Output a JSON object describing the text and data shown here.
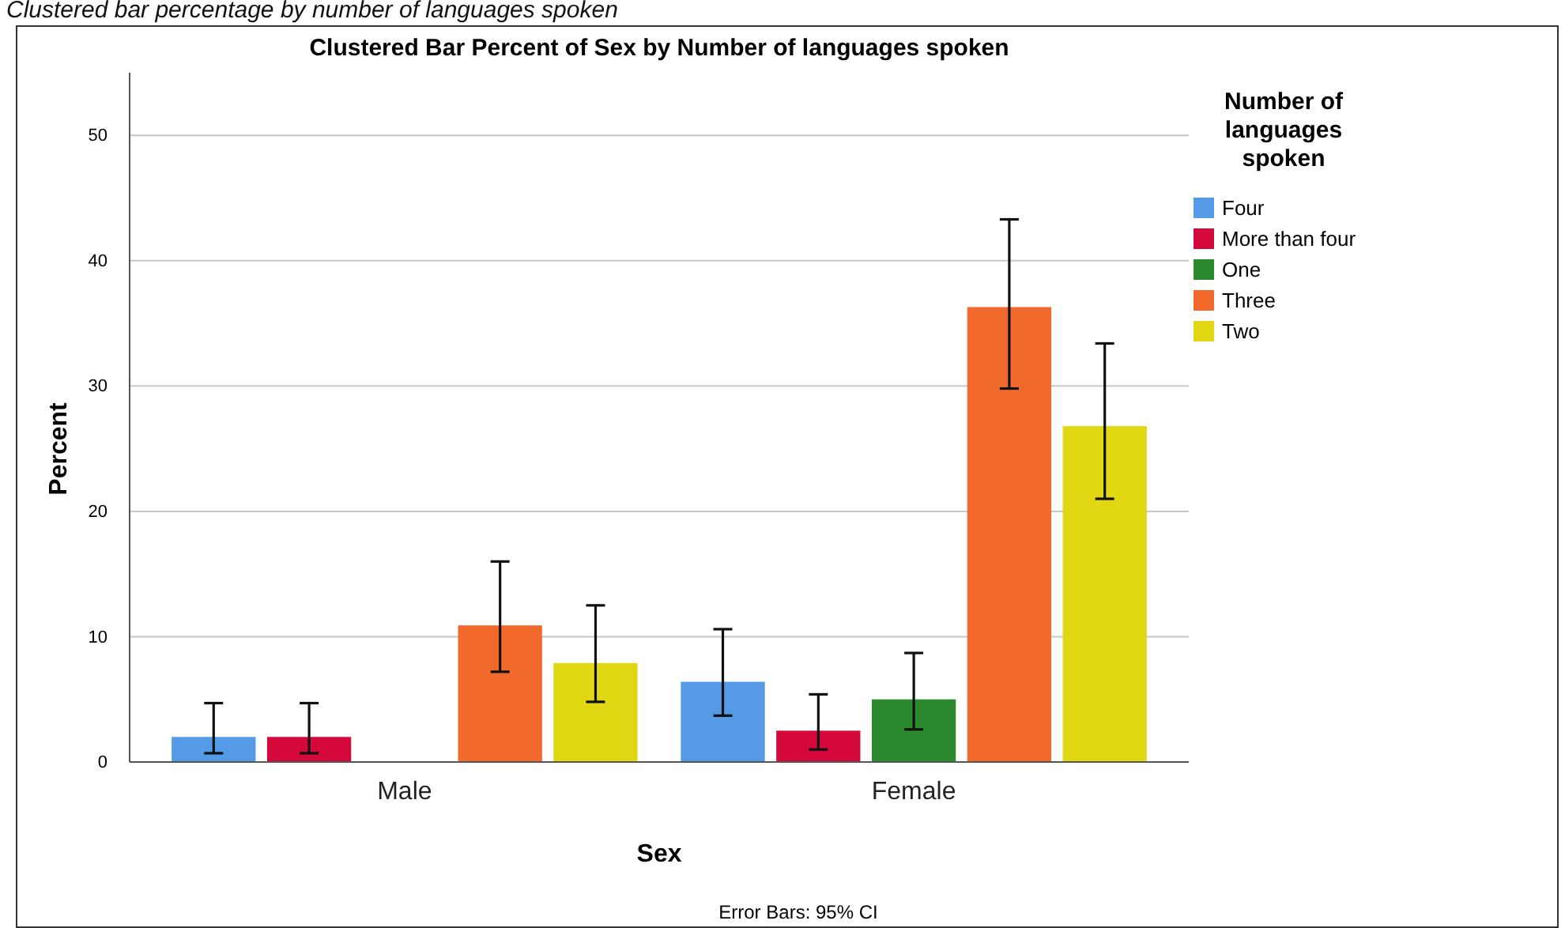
{
  "chart_data": {
    "type": "bar",
    "title": "Clustered Bar Percent of Sex by Number of languages spoken",
    "xlabel": "Sex",
    "ylabel": "Percent",
    "legend_title": "Number of languages spoken",
    "annotations": [
      "Clustered bar percentage by number of languages spoken",
      "Error Bars: 95% CI"
    ],
    "categories": [
      "Male",
      "Female"
    ],
    "ylim": [
      0,
      55
    ],
    "yticks": [
      0,
      10,
      20,
      30,
      40,
      50
    ],
    "grid": "y",
    "legend": "right",
    "series": [
      {
        "name": "Four",
        "color": "#559ae6",
        "values": [
          2.0,
          6.4
        ],
        "errors": [
          [
            0.7,
            4.7
          ],
          [
            3.7,
            10.6
          ]
        ]
      },
      {
        "name": "More than four",
        "color": "#d4083a",
        "values": [
          2.0,
          2.5
        ],
        "errors": [
          [
            0.7,
            4.7
          ],
          [
            1.0,
            5.4
          ]
        ]
      },
      {
        "name": "One",
        "color": "#2b8a2e",
        "values": [
          null,
          5.0
        ],
        "errors": [
          null,
          [
            2.6,
            8.7
          ]
        ]
      },
      {
        "name": "Three",
        "color": "#f2692c",
        "values": [
          10.9,
          36.3
        ],
        "errors": [
          [
            7.2,
            16.0
          ],
          [
            29.8,
            43.3
          ]
        ]
      },
      {
        "name": "Two",
        "color": "#e1d712",
        "values": [
          7.9,
          26.8
        ],
        "errors": [
          [
            4.8,
            12.5
          ],
          [
            21.0,
            33.4
          ]
        ]
      }
    ]
  }
}
